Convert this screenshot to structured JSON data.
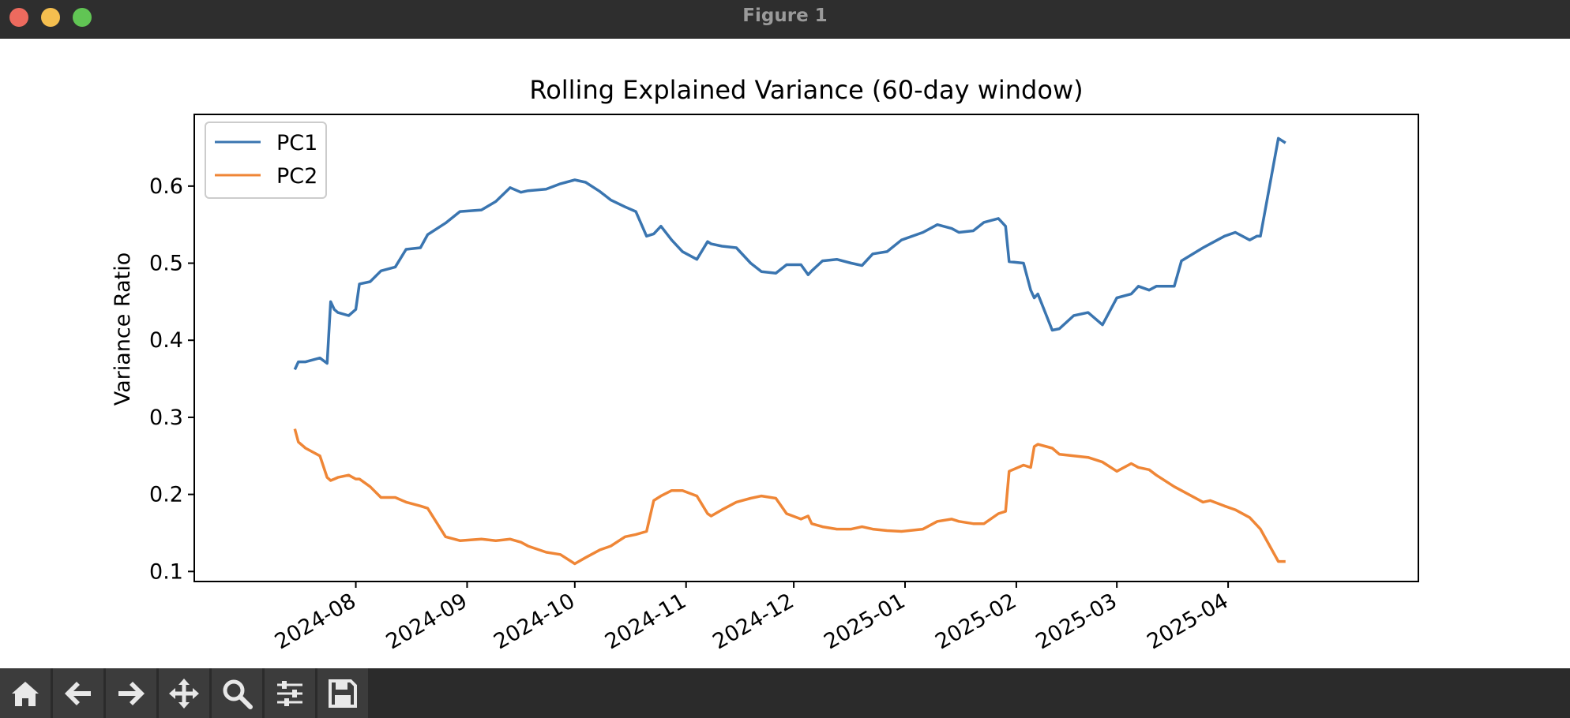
{
  "window": {
    "title": "Figure 1"
  },
  "toolbar": {
    "buttons": [
      {
        "name": "home-icon"
      },
      {
        "name": "back-arrow-icon"
      },
      {
        "name": "forward-arrow-icon"
      },
      {
        "name": "pan-icon"
      },
      {
        "name": "zoom-icon"
      },
      {
        "name": "configure-subplots-icon"
      },
      {
        "name": "save-icon"
      }
    ]
  },
  "colors": {
    "pc1": "#3a75b0",
    "pc2": "#ef8636"
  },
  "chart_data": {
    "type": "line",
    "title": "Rolling Explained Variance (60-day window)",
    "xlabel": "",
    "ylabel": "Variance Ratio",
    "xlim": [
      "2024-06-17",
      "2025-05-24"
    ],
    "ylim": [
      0.087,
      0.693
    ],
    "yticks": [
      0.1,
      0.2,
      0.3,
      0.4,
      0.5,
      0.6
    ],
    "ytick_labels": [
      "0.1",
      "0.2",
      "0.3",
      "0.4",
      "0.5",
      "0.6"
    ],
    "xticks": [
      "2024-08-01",
      "2024-09-01",
      "2024-10-01",
      "2024-11-01",
      "2024-12-01",
      "2025-01-01",
      "2025-02-01",
      "2025-03-01",
      "2025-04-01"
    ],
    "xtick_labels": [
      "2024-08",
      "2024-09",
      "2024-10",
      "2024-11",
      "2024-12",
      "2025-01",
      "2025-02",
      "2025-03",
      "2025-04"
    ],
    "legend": {
      "position": "top-left",
      "entries": [
        "PC1",
        "PC2"
      ]
    },
    "grid": false,
    "x": [
      "2024-07-15",
      "2024-07-16",
      "2024-07-18",
      "2024-07-22",
      "2024-07-24",
      "2024-07-25",
      "2024-07-26",
      "2024-07-27",
      "2024-07-30",
      "2024-08-01",
      "2024-08-02",
      "2024-08-05",
      "2024-08-08",
      "2024-08-12",
      "2024-08-15",
      "2024-08-19",
      "2024-08-21",
      "2024-08-26",
      "2024-08-30",
      "2024-09-05",
      "2024-09-09",
      "2024-09-13",
      "2024-09-16",
      "2024-09-18",
      "2024-09-23",
      "2024-09-27",
      "2024-10-01",
      "2024-10-04",
      "2024-10-08",
      "2024-10-11",
      "2024-10-15",
      "2024-10-18",
      "2024-10-21",
      "2024-10-23",
      "2024-10-25",
      "2024-10-28",
      "2024-10-31",
      "2024-11-04",
      "2024-11-07",
      "2024-11-08",
      "2024-11-11",
      "2024-11-15",
      "2024-11-19",
      "2024-11-22",
      "2024-11-26",
      "2024-11-29",
      "2024-12-03",
      "2024-12-05",
      "2024-12-06",
      "2024-12-09",
      "2024-12-13",
      "2024-12-17",
      "2024-12-20",
      "2024-12-23",
      "2024-12-27",
      "2024-12-31",
      "2025-01-06",
      "2025-01-10",
      "2025-01-14",
      "2025-01-16",
      "2025-01-20",
      "2025-01-23",
      "2025-01-27",
      "2025-01-29",
      "2025-01-30",
      "2025-02-03",
      "2025-02-05",
      "2025-02-06",
      "2025-02-07",
      "2025-02-11",
      "2025-02-13",
      "2025-02-17",
      "2025-02-21",
      "2025-02-25",
      "2025-03-01",
      "2025-03-05",
      "2025-03-07",
      "2025-03-10",
      "2025-03-12",
      "2025-03-17",
      "2025-03-19",
      "2025-03-25",
      "2025-03-27",
      "2025-03-31",
      "2025-04-03",
      "2025-04-07",
      "2025-04-09",
      "2025-04-10",
      "2025-04-15",
      "2025-04-17"
    ],
    "series": [
      {
        "name": "PC1",
        "values": [
          0.362,
          0.372,
          0.372,
          0.377,
          0.37,
          0.45,
          0.44,
          0.436,
          0.432,
          0.44,
          0.473,
          0.476,
          0.49,
          0.495,
          0.518,
          0.52,
          0.537,
          0.552,
          0.567,
          0.569,
          0.58,
          0.598,
          0.592,
          0.594,
          0.596,
          0.603,
          0.608,
          0.605,
          0.593,
          0.582,
          0.573,
          0.567,
          0.535,
          0.538,
          0.548,
          0.53,
          0.515,
          0.505,
          0.528,
          0.525,
          0.522,
          0.52,
          0.5,
          0.489,
          0.487,
          0.498,
          0.498,
          0.485,
          0.49,
          0.503,
          0.505,
          0.5,
          0.497,
          0.512,
          0.515,
          0.53,
          0.54,
          0.55,
          0.545,
          0.54,
          0.542,
          0.553,
          0.558,
          0.548,
          0.502,
          0.5,
          0.465,
          0.455,
          0.46,
          0.413,
          0.415,
          0.432,
          0.436,
          0.42,
          0.455,
          0.46,
          0.47,
          0.465,
          0.47,
          0.47,
          0.503,
          0.52,
          0.525,
          0.535,
          0.54,
          0.53,
          0.535,
          0.535,
          0.662,
          0.656
        ]
      },
      {
        "name": "PC2",
        "values": [
          0.285,
          0.268,
          0.26,
          0.25,
          0.222,
          0.218,
          0.22,
          0.222,
          0.225,
          0.22,
          0.22,
          0.21,
          0.196,
          0.196,
          0.19,
          0.185,
          0.182,
          0.145,
          0.14,
          0.142,
          0.14,
          0.142,
          0.138,
          0.133,
          0.125,
          0.122,
          0.11,
          0.118,
          0.128,
          0.133,
          0.145,
          0.148,
          0.152,
          0.192,
          0.198,
          0.205,
          0.205,
          0.198,
          0.175,
          0.172,
          0.18,
          0.19,
          0.195,
          0.198,
          0.195,
          0.175,
          0.168,
          0.172,
          0.162,
          0.158,
          0.155,
          0.155,
          0.158,
          0.155,
          0.153,
          0.152,
          0.155,
          0.165,
          0.168,
          0.165,
          0.162,
          0.162,
          0.175,
          0.178,
          0.23,
          0.238,
          0.235,
          0.262,
          0.265,
          0.26,
          0.252,
          0.25,
          0.248,
          0.242,
          0.23,
          0.24,
          0.235,
          0.232,
          0.225,
          0.21,
          0.205,
          0.19,
          0.192,
          0.185,
          0.18,
          0.17,
          0.16,
          0.155,
          0.113,
          0.113
        ]
      }
    ]
  }
}
